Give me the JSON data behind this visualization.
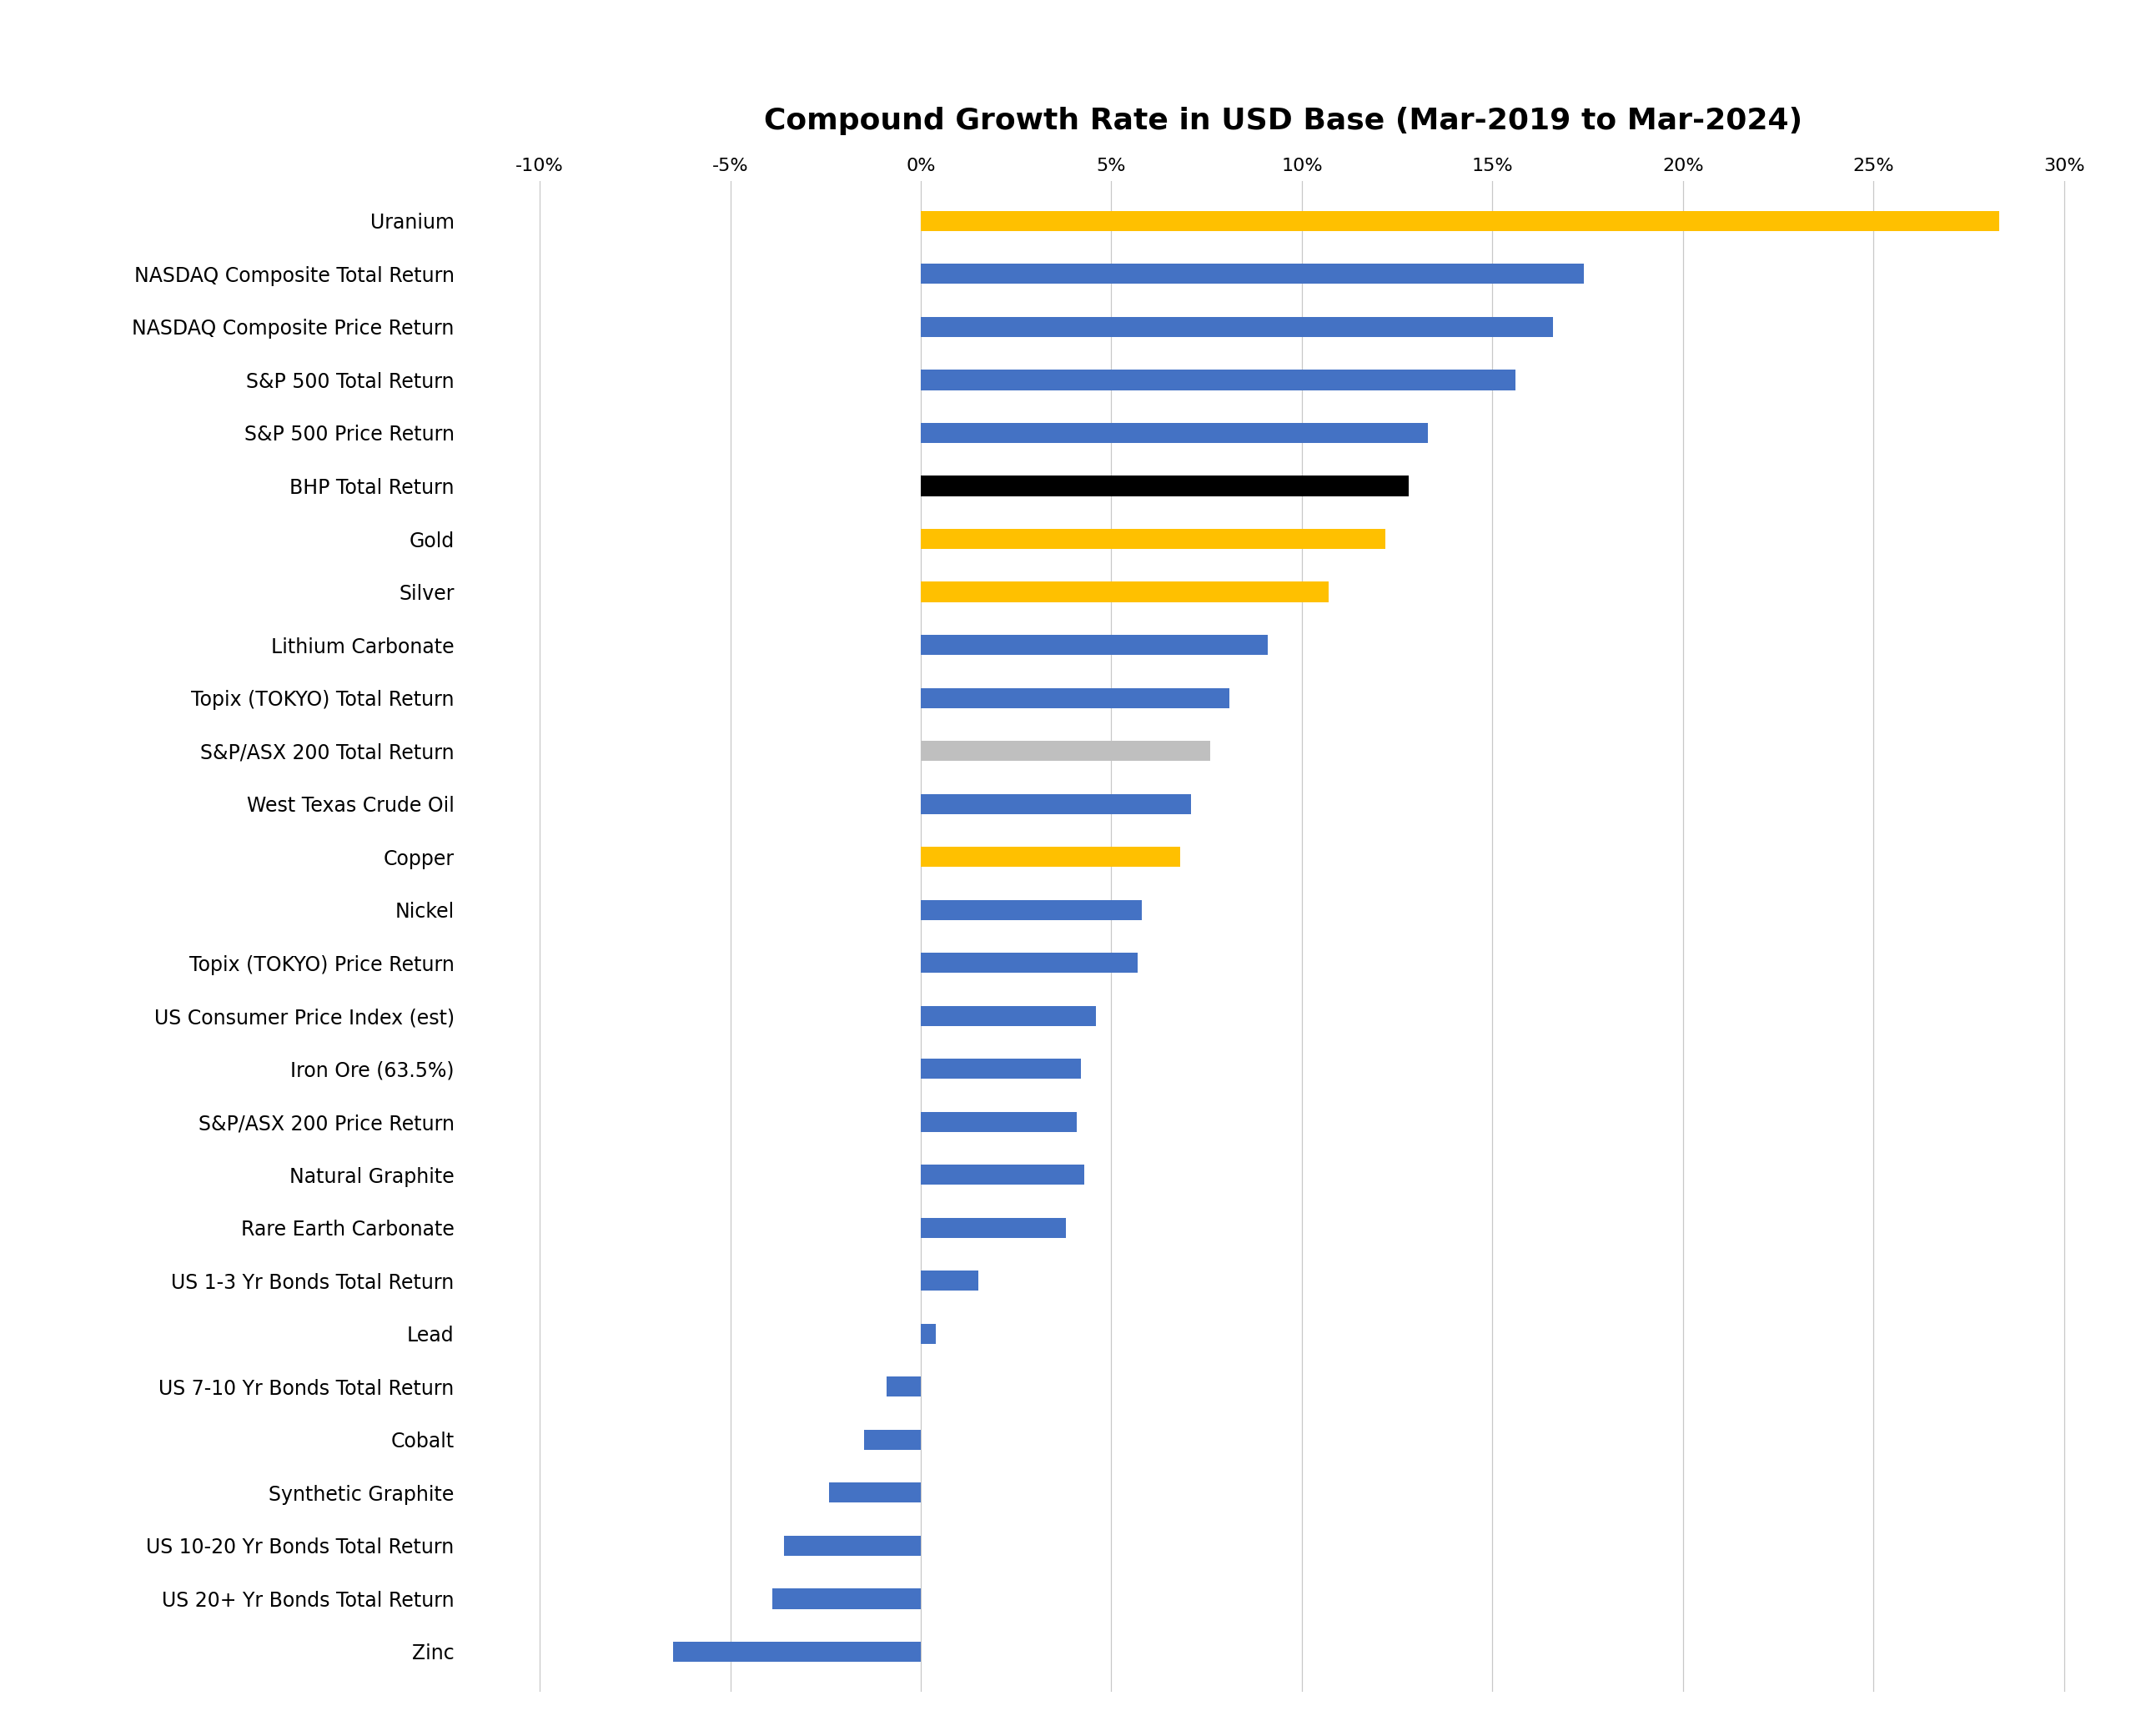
{
  "title": "Compound Growth Rate in USD Base (Mar-2019 to Mar-2024)",
  "categories": [
    "Uranium",
    "NASDAQ Composite Total Return",
    "NASDAQ Composite Price Return",
    "S&P 500 Total Return",
    "S&P 500 Price Return",
    "BHP Total Return",
    "Gold",
    "Silver",
    "Lithium Carbonate",
    "Topix (TOKYO) Total Return",
    "S&P/ASX 200 Total Return",
    "West Texas Crude Oil",
    "Copper",
    "Nickel",
    "Topix (TOKYO) Price Return",
    "US Consumer Price Index (est)",
    "Iron Ore (63.5%)",
    "S&P/ASX 200 Price Return",
    "Natural Graphite",
    "Rare Earth Carbonate",
    "US 1-3 Yr Bonds Total Return",
    "Lead",
    "US 7-10 Yr Bonds Total Return",
    "Cobalt",
    "Synthetic Graphite",
    "US 10-20 Yr Bonds Total Return",
    "US 20+ Yr Bonds Total Return",
    "Zinc"
  ],
  "values": [
    28.3,
    17.4,
    16.6,
    15.6,
    13.3,
    12.8,
    12.2,
    10.7,
    9.1,
    8.1,
    7.6,
    7.1,
    6.8,
    5.8,
    5.7,
    4.6,
    4.2,
    4.1,
    4.3,
    3.8,
    1.5,
    0.4,
    -0.9,
    -1.5,
    -2.4,
    -3.6,
    -3.9,
    -6.5
  ],
  "colors": [
    "#FFC000",
    "#4472C4",
    "#4472C4",
    "#4472C4",
    "#4472C4",
    "#000000",
    "#FFC000",
    "#FFC000",
    "#4472C4",
    "#4472C4",
    "#BFBFBF",
    "#4472C4",
    "#FFC000",
    "#4472C4",
    "#4472C4",
    "#4472C4",
    "#4472C4",
    "#4472C4",
    "#4472C4",
    "#4472C4",
    "#4472C4",
    "#4472C4",
    "#4472C4",
    "#4472C4",
    "#4472C4",
    "#4472C4",
    "#4472C4",
    "#4472C4"
  ],
  "xlim": [
    -12,
    31
  ],
  "xticks": [
    -10,
    -5,
    0,
    5,
    10,
    15,
    20,
    25,
    30
  ],
  "xtick_labels": [
    "-10%",
    "-5%",
    "0%",
    "5%",
    "10%",
    "15%",
    "20%",
    "25%",
    "30%"
  ],
  "background_color": "#FFFFFF",
  "grid_color": "#C8C8C8",
  "bar_height": 0.38,
  "title_fontsize": 26,
  "tick_fontsize": 16,
  "label_fontsize": 17
}
